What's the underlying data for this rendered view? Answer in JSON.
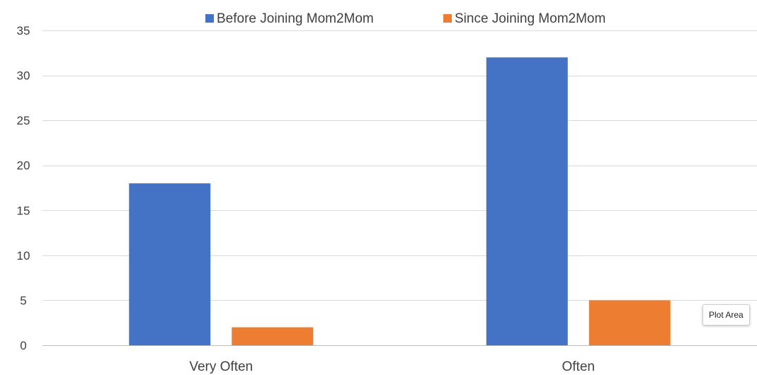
{
  "chart_data": {
    "type": "bar",
    "categories": [
      "Very Often",
      "Often"
    ],
    "series": [
      {
        "name": "Before Joining Mom2Mom",
        "values": [
          18,
          32
        ],
        "color": "#4472C4"
      },
      {
        "name": "Since Joining Mom2Mom",
        "values": [
          2,
          5
        ],
        "color": "#ED7D31"
      }
    ],
    "title": "",
    "xlabel": "",
    "ylabel": "",
    "ylim": [
      0,
      35
    ],
    "yticks": [
      0,
      5,
      10,
      15,
      20,
      25,
      30,
      35
    ],
    "grid": true,
    "legend_position": "top"
  },
  "tooltip": {
    "text": "Plot Area"
  }
}
